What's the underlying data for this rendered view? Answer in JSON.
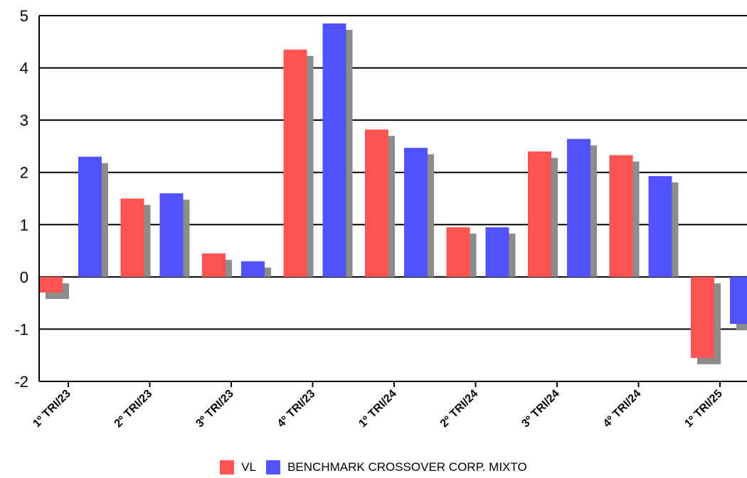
{
  "chart_data": {
    "type": "bar",
    "categories": [
      "1º TRI/23",
      "2º TRI/23",
      "3º TRI/23",
      "4º TRI/23",
      "1º TRI/24",
      "2º TRI/24",
      "3º TRI/24",
      "4º TRI/24",
      "1º TRI/25"
    ],
    "series": [
      {
        "name": "VL",
        "color": "#ff5252",
        "values": [
          -0.3,
          1.5,
          0.45,
          4.35,
          2.82,
          0.95,
          2.4,
          2.33,
          -1.55
        ]
      },
      {
        "name": "BENCHMARK CROSSOVER CORP. MIXTO",
        "color": "#5252ff",
        "values": [
          2.3,
          1.6,
          0.3,
          4.85,
          2.47,
          0.95,
          2.64,
          1.93,
          -0.9
        ]
      }
    ],
    "ylim": [
      -2,
      5
    ],
    "yticks": [
      -2,
      -1,
      0,
      1,
      2,
      3,
      4,
      5
    ],
    "grid": true,
    "legend_position": "bottom-center",
    "shadow_color": "#8c8c8c",
    "title": "",
    "xlabel": "",
    "ylabel": ""
  }
}
